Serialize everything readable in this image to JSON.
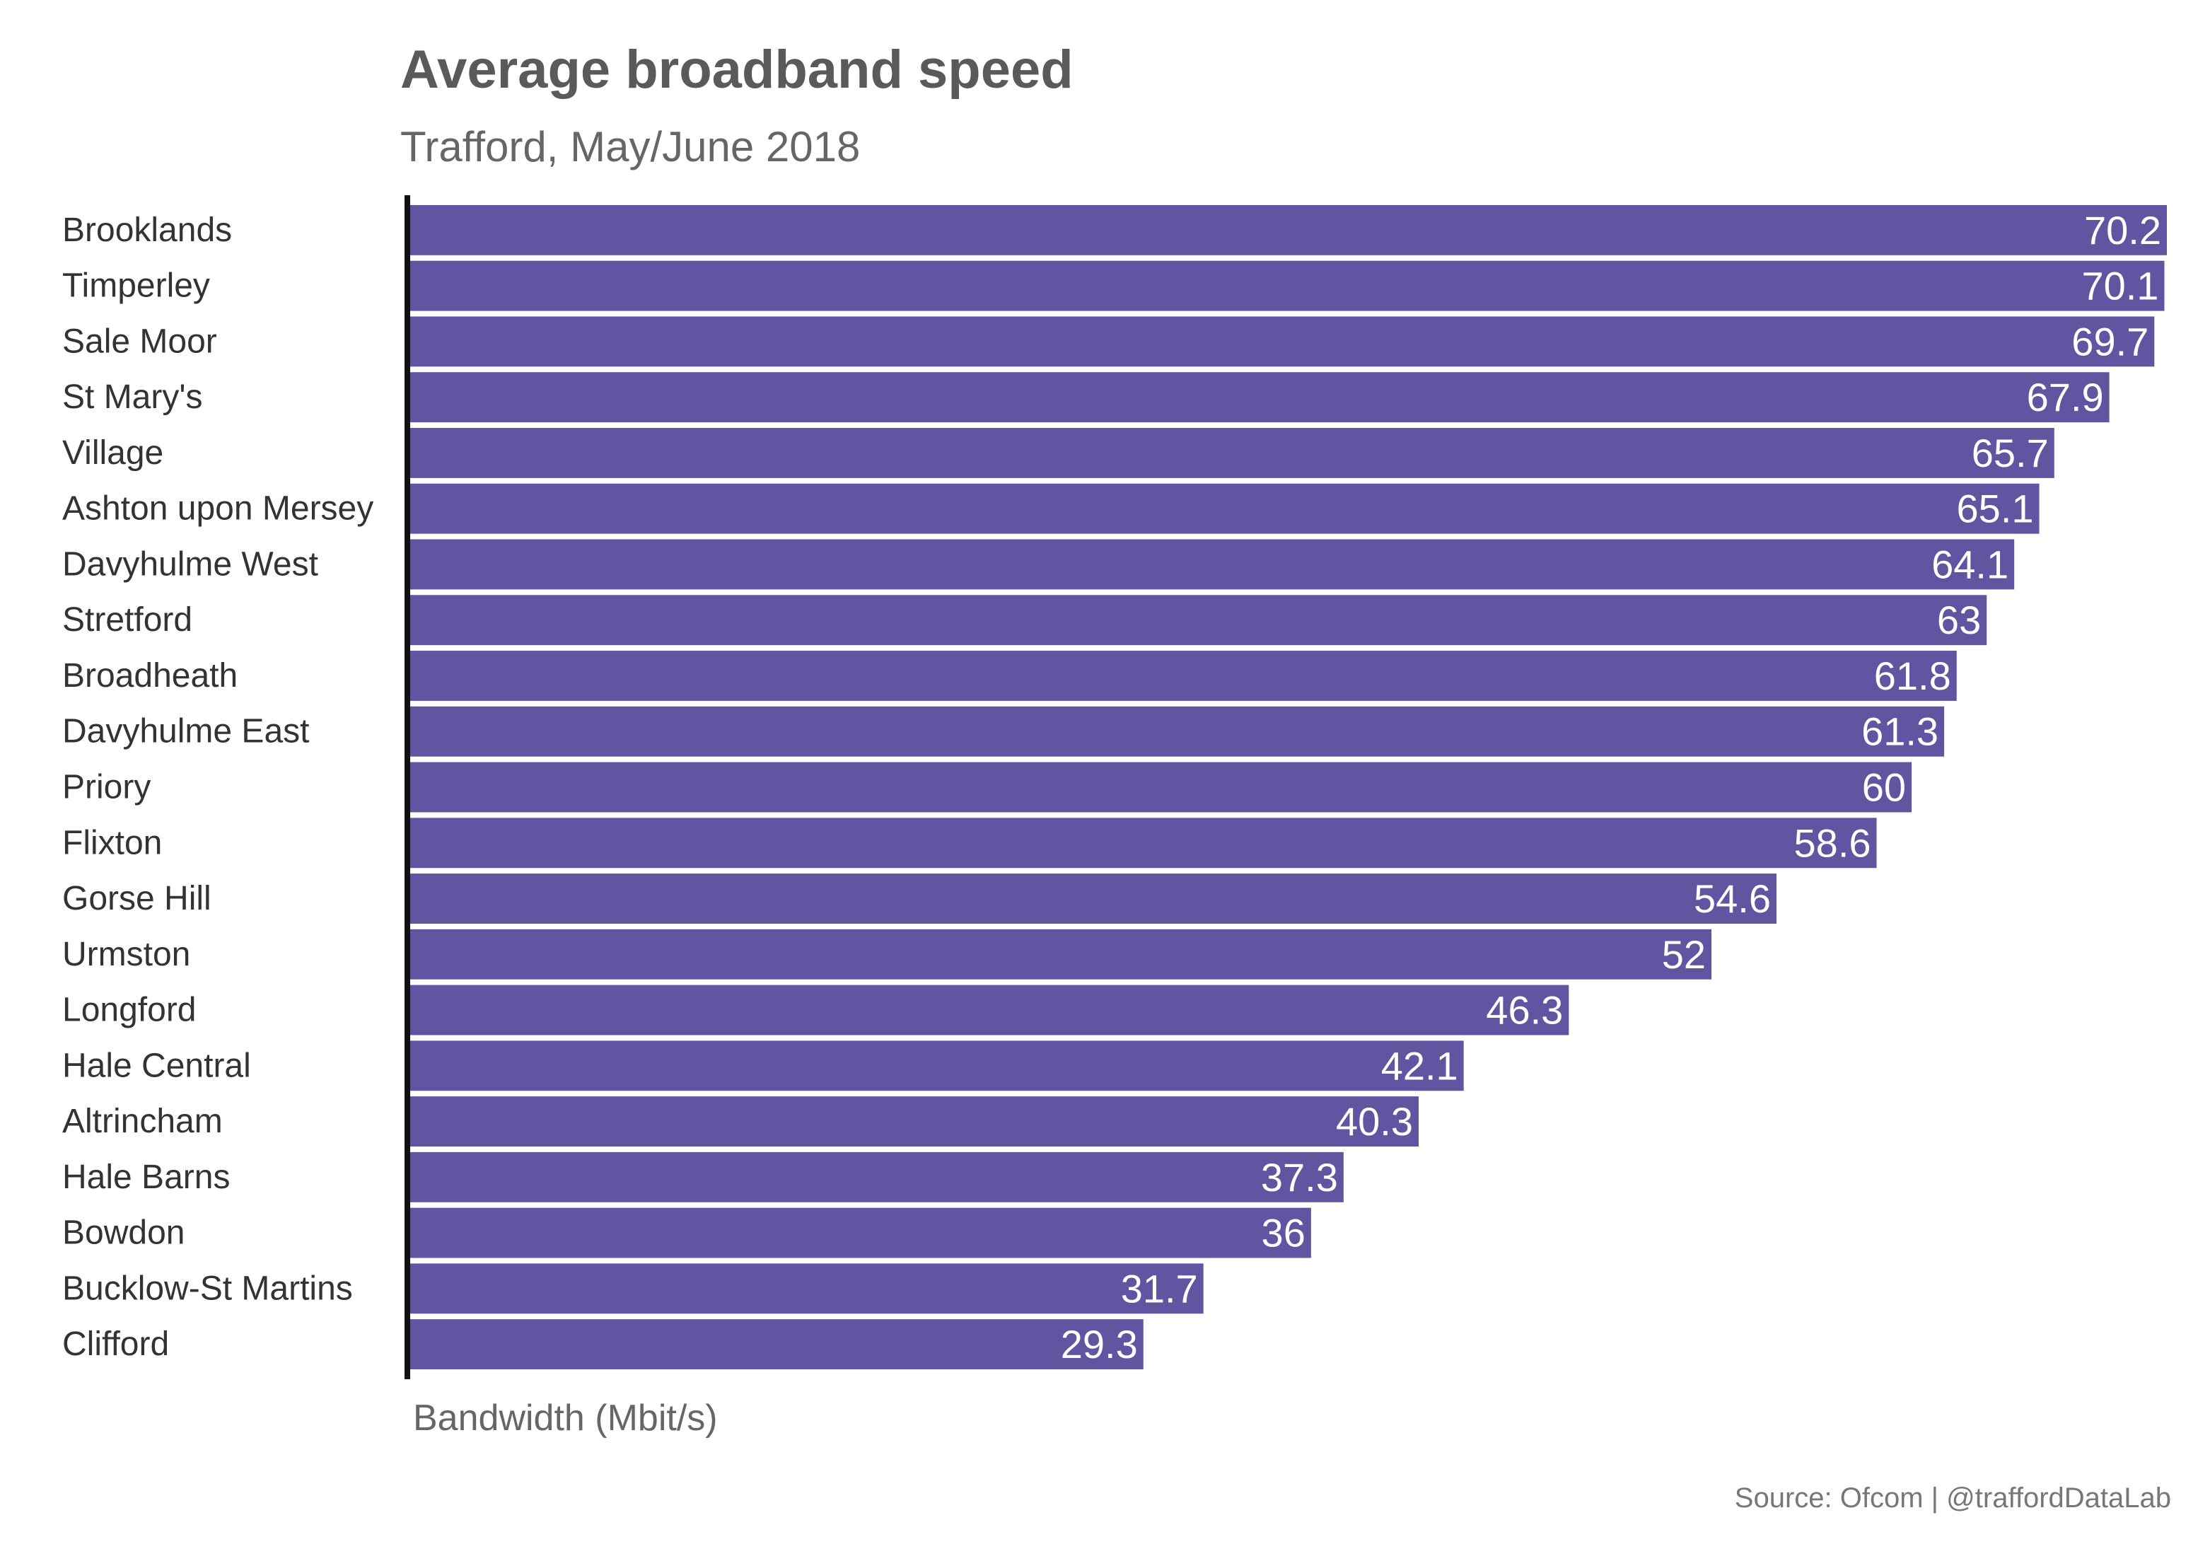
{
  "chart_data": {
    "type": "bar",
    "orientation": "horizontal",
    "title": "Average broadband speed",
    "subtitle": "Trafford, May/June 2018",
    "xlabel": "Bandwidth (Mbit/s)",
    "ylabel": "",
    "caption": "Source: Ofcom | @traffordDataLab",
    "bar_color": "#6155a2",
    "axis_color": "#111111",
    "xlim": [
      0,
      70.2
    ],
    "grid": false,
    "legend": "none",
    "categories": [
      "Brooklands",
      "Timperley",
      "Sale Moor",
      "St Mary's",
      "Village",
      "Ashton upon Mersey",
      "Davyhulme West",
      "Stretford",
      "Broadheath",
      "Davyhulme East",
      "Priory",
      "Flixton",
      "Gorse Hill",
      "Urmston",
      "Longford",
      "Hale Central",
      "Altrincham",
      "Hale Barns",
      "Bowdon",
      "Bucklow-St Martins",
      "Clifford"
    ],
    "values": [
      70.2,
      70.1,
      69.7,
      67.9,
      65.7,
      65.1,
      64.1,
      63,
      61.8,
      61.3,
      60,
      58.6,
      54.6,
      52,
      46.3,
      42.1,
      40.3,
      37.3,
      36,
      31.7,
      29.3
    ]
  }
}
